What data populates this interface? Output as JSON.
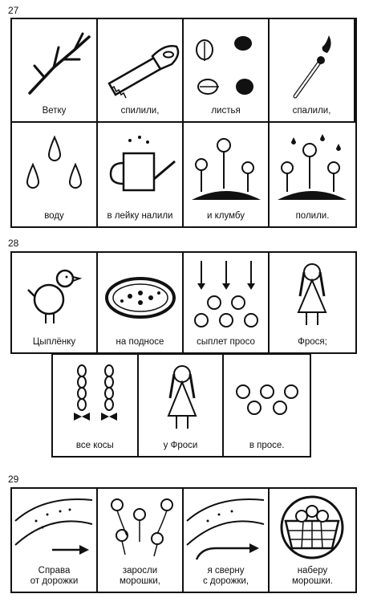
{
  "sections": [
    {
      "number": "27",
      "cells": [
        {
          "caption": "Ветку",
          "icon": "branch-icon"
        },
        {
          "caption": "спилили,",
          "icon": "saw-icon"
        },
        {
          "caption": "листья",
          "icon": "leaves-icon"
        },
        {
          "caption": "спалили,",
          "icon": "match-icon"
        },
        {
          "caption": "воду",
          "icon": "drops-icon"
        },
        {
          "caption": "в лейку налили",
          "icon": "watering-can-icon"
        },
        {
          "caption": "и клумбу",
          "icon": "flowerbed-icon"
        },
        {
          "caption": "полили.",
          "icon": "watered-flowerbed-icon"
        }
      ]
    },
    {
      "number": "28",
      "cells": [
        {
          "caption": "Цыплёнку",
          "icon": "chick-icon"
        },
        {
          "caption": "на подносе",
          "icon": "tray-icon"
        },
        {
          "caption": "сыплет просо",
          "icon": "pouring-millet-icon"
        },
        {
          "caption": "Фрося;",
          "icon": "girl-icon"
        },
        {
          "caption": "все косы",
          "icon": "braids-icon"
        },
        {
          "caption": "у Фроси",
          "icon": "girl-icon"
        },
        {
          "caption": "в просе.",
          "icon": "millet-icon"
        }
      ]
    },
    {
      "number": "29",
      "cells": [
        {
          "caption": "Справа\nот дорожки",
          "icon": "path-right-icon"
        },
        {
          "caption": "заросли\nморошки,",
          "icon": "cloudberry-bush-icon"
        },
        {
          "caption": "я сверну\nс дорожки,",
          "icon": "path-turn-icon"
        },
        {
          "caption": "наберу\nморошки.",
          "icon": "basket-icon"
        }
      ]
    }
  ]
}
